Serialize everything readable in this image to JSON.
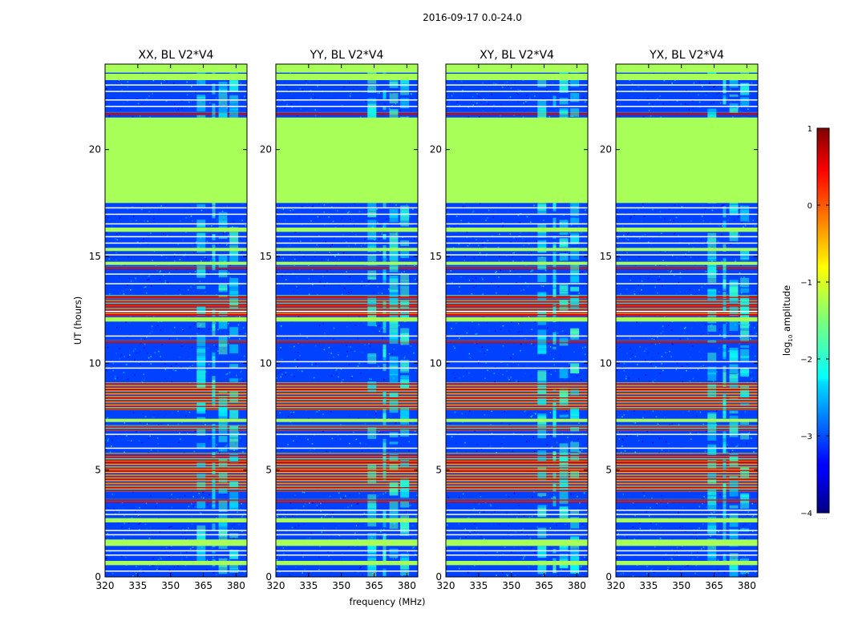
{
  "figure": {
    "suptitle": "2016-09-17 0.0-24.0",
    "xlabel": "frequency (MHz)",
    "ylabel": "UT (hours)"
  },
  "chart_data": {
    "type": "heatmap",
    "description": "Dynamic spectra (log10 amplitude vs frequency and UT) for four polarization products on baseline V2*V4",
    "panels": [
      {
        "title": "XX, BL V2*V4",
        "product": "XX"
      },
      {
        "title": "YY, BL V2*V4",
        "product": "YY"
      },
      {
        "title": "XY, BL V2*V4",
        "product": "XY"
      },
      {
        "title": "YX, BL V2*V4",
        "product": "YX"
      }
    ],
    "x": {
      "label": "frequency (MHz)",
      "range": [
        320,
        385
      ],
      "ticks": [
        320,
        335,
        350,
        365,
        380
      ]
    },
    "y": {
      "label": "UT (hours)",
      "range": [
        0,
        24
      ],
      "ticks": [
        0,
        5,
        10,
        15,
        20
      ]
    },
    "colorbar": {
      "label_main": "log",
      "label_sub": "10",
      "label_tail": " amplitude",
      "range": [
        -4,
        1
      ],
      "ticks": [
        -4,
        -3,
        -2,
        -1,
        0,
        1
      ],
      "tick_labels": [
        "−4",
        "−3",
        "−2",
        "−1",
        "0",
        "1"
      ],
      "colormap": "jet",
      "below_text": "......"
    },
    "flagged_value": -1.3,
    "flagged_intervals_ut": [
      [
        0.55,
        0.75
      ],
      [
        1.45,
        1.75
      ],
      [
        2.55,
        2.75
      ],
      [
        7.25,
        7.4
      ],
      [
        11.95,
        12.15
      ],
      [
        14.6,
        14.75
      ],
      [
        15.25,
        15.4
      ],
      [
        16.15,
        16.35
      ],
      [
        17.5,
        21.5
      ],
      [
        23.25,
        23.55
      ],
      [
        23.6,
        24.0
      ]
    ],
    "rfi_intervals_ut": [
      [
        3.5,
        3.65
      ],
      [
        4.0,
        5.8
      ],
      [
        6.85,
        7.1
      ],
      [
        7.8,
        9.1
      ],
      [
        10.95,
        11.1
      ],
      [
        12.2,
        13.2
      ],
      [
        14.4,
        14.55
      ],
      [
        21.65,
        21.75
      ]
    ],
    "rfi_channel_ranges_mhz": [
      [
        362,
        366
      ],
      [
        369,
        370.5
      ],
      [
        372,
        376
      ],
      [
        377,
        381
      ]
    ],
    "white_line_ut": [
      0.3,
      1.05,
      1.25,
      2.0,
      2.2,
      2.95,
      3.15,
      6.05,
      6.7,
      9.8,
      10.1,
      11.3,
      12.45,
      13.75,
      14.2,
      15.1,
      15.65,
      15.95,
      16.55,
      17.0,
      17.3,
      22.05,
      22.35,
      22.75,
      23.05
    ],
    "red_line_ut": [
      3.62,
      4.2,
      4.6,
      5.0,
      5.4,
      5.7,
      8.0,
      8.4,
      8.8,
      9.05,
      12.3,
      12.7,
      13.1
    ]
  }
}
